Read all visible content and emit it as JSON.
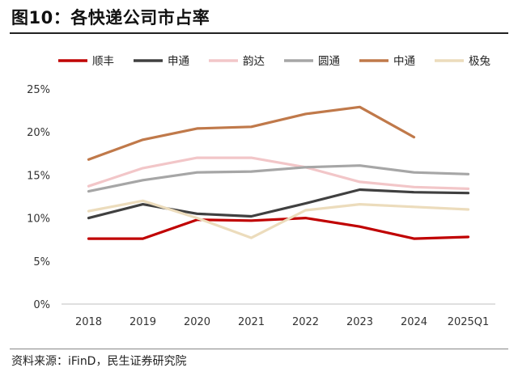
{
  "header": {
    "title": "图10：各快递公司市占率"
  },
  "footer": {
    "source": "资料来源：iFinD，民生证券研究院"
  },
  "chart_data": {
    "type": "line",
    "title": "",
    "xlabel": "",
    "ylabel": "",
    "categories": [
      "2018",
      "2019",
      "2020",
      "2021",
      "2022",
      "2023",
      "2024",
      "2025Q1"
    ],
    "ylim": [
      0,
      25
    ],
    "yticks": [
      0,
      5,
      10,
      15,
      20,
      25
    ],
    "ytick_labels": [
      "0%",
      "5%",
      "10%",
      "15%",
      "20%",
      "25%"
    ],
    "grid": false,
    "legend_position": "top",
    "series": [
      {
        "name": "顺丰",
        "color": "#c00000",
        "values": [
          7.6,
          7.6,
          9.8,
          9.7,
          10.0,
          9.0,
          7.6,
          7.8
        ]
      },
      {
        "name": "申通",
        "color": "#404040",
        "values": [
          10.0,
          11.6,
          10.5,
          10.2,
          11.7,
          13.3,
          13.0,
          12.9
        ]
      },
      {
        "name": "韵达",
        "color": "#f2c6c8",
        "values": [
          13.7,
          15.8,
          17.0,
          17.0,
          15.9,
          14.2,
          13.6,
          13.4
        ]
      },
      {
        "name": "圆通",
        "color": "#a6a6a6",
        "values": [
          13.1,
          14.4,
          15.3,
          15.4,
          15.9,
          16.1,
          15.3,
          15.1
        ]
      },
      {
        "name": "中通",
        "color": "#c0794a",
        "values": [
          16.8,
          19.1,
          20.4,
          20.6,
          22.1,
          22.9,
          19.4,
          null
        ]
      },
      {
        "name": "极兔",
        "color": "#ecdcbc",
        "values": [
          10.8,
          12.0,
          10.0,
          7.7,
          10.9,
          11.6,
          11.3,
          11.0
        ]
      }
    ]
  }
}
